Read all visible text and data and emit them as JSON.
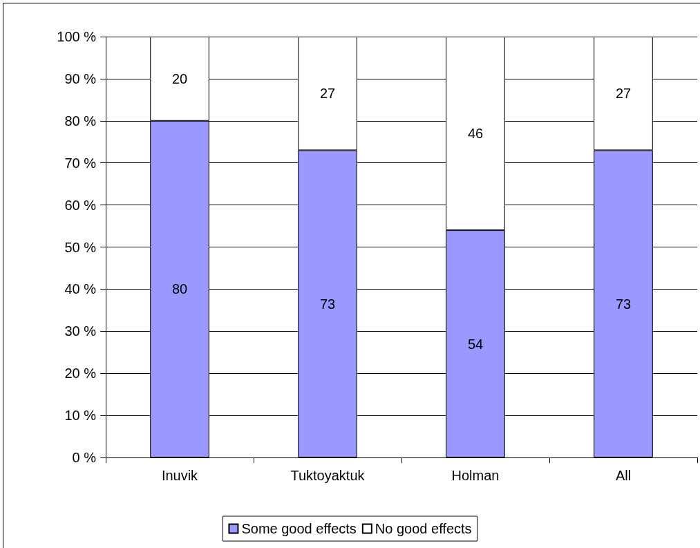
{
  "chart_data": {
    "type": "bar",
    "stacked": true,
    "categories": [
      "Inuvik",
      "Tuktoyaktuk",
      "Holman",
      "All"
    ],
    "series": [
      {
        "name": "Some good effects",
        "color": "#9999ff",
        "values": [
          80,
          73,
          54,
          73
        ]
      },
      {
        "name": "No good effects",
        "color": "#ffffff",
        "values": [
          20,
          27,
          46,
          27
        ]
      }
    ],
    "ylim": [
      0,
      100
    ],
    "yticks": [
      {
        "value": 0,
        "label": "0 %"
      },
      {
        "value": 10,
        "label": "10 %"
      },
      {
        "value": 20,
        "label": "20 %"
      },
      {
        "value": 30,
        "label": "30 %"
      },
      {
        "value": 40,
        "label": "40 %"
      },
      {
        "value": 50,
        "label": "50 %"
      },
      {
        "value": 60,
        "label": "60 %"
      },
      {
        "value": 70,
        "label": "70 %"
      },
      {
        "value": 80,
        "label": "80 %"
      },
      {
        "value": 90,
        "label": "90 %"
      },
      {
        "value": 100,
        "label": "100 %"
      }
    ],
    "grid": "y",
    "legend": "bottom",
    "data_labels": true
  }
}
